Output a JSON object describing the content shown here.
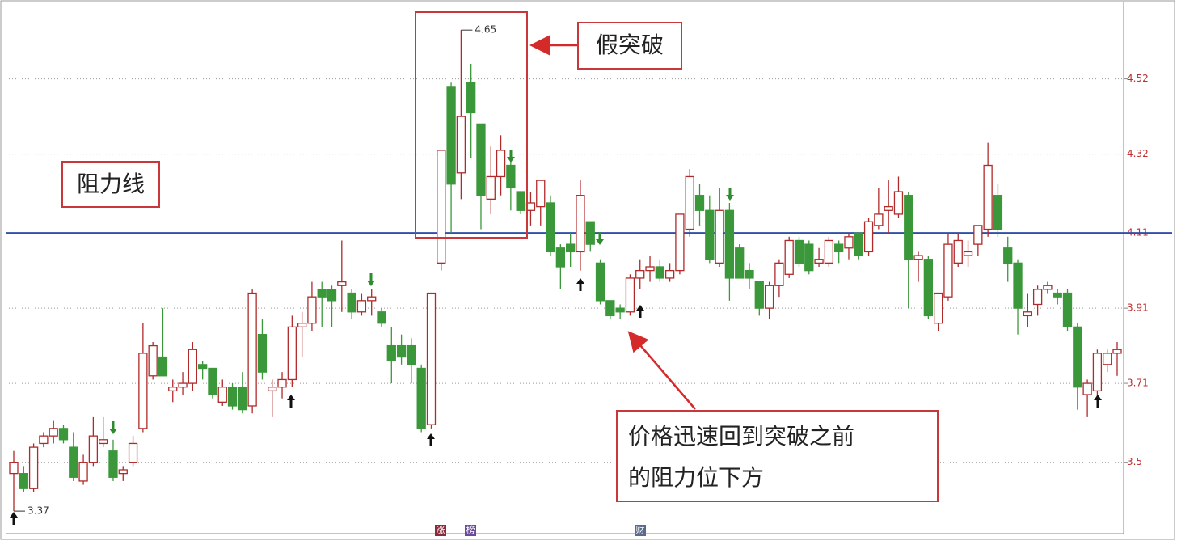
{
  "chart_data": {
    "type": "candlestick",
    "open": [
      3.47,
      3.47,
      3.43,
      3.55,
      3.57,
      3.59,
      3.54,
      3.45,
      3.5,
      3.55,
      3.53,
      3.47,
      3.5,
      3.59,
      3.73,
      3.78,
      3.69,
      3.7,
      3.71,
      3.76,
      3.75,
      3.66,
      3.7,
      3.7,
      3.65,
      3.84,
      3.69,
      3.7,
      3.72,
      3.86,
      3.87,
      3.96,
      3.96,
      3.97,
      3.95,
      3.9,
      3.93,
      3.9,
      3.81,
      3.81,
      3.81,
      3.75,
      3.6,
      4.03,
      4.5,
      4.27,
      4.51,
      4.4,
      4.2,
      4.26,
      4.29,
      4.22,
      4.17,
      4.18,
      4.19,
      4.07,
      4.08,
      4.06,
      4.14,
      4.03,
      3.93,
      3.91,
      3.9,
      3.99,
      4.01,
      4.02,
      3.99,
      4.01,
      4.12,
      4.21,
      4.17,
      4.03,
      4.17,
      4.07,
      4.01,
      3.98,
      3.91,
      3.97,
      4.0,
      4.09,
      4.08,
      4.03,
      4.03,
      4.08,
      4.07,
      4.11,
      4.06,
      4.13,
      4.17,
      4.16,
      4.21,
      4.04,
      4.04,
      3.87,
      3.94,
      4.03,
      4.05,
      4.08,
      4.12,
      4.21,
      4.07,
      4.03,
      3.89,
      3.92,
      3.96,
      3.95,
      3.95,
      3.86,
      3.68,
      3.69,
      3.76,
      3.79
    ],
    "high": [
      3.53,
      3.49,
      3.55,
      3.58,
      3.61,
      3.6,
      3.58,
      3.52,
      3.62,
      3.62,
      3.56,
      3.49,
      3.57,
      3.87,
      3.82,
      3.91,
      3.72,
      3.74,
      3.82,
      3.77,
      3.75,
      3.72,
      3.71,
      3.74,
      3.96,
      3.88,
      3.72,
      3.74,
      3.89,
      3.9,
      3.98,
      3.98,
      3.97,
      4.09,
      3.96,
      3.95,
      3.96,
      3.91,
      3.86,
      3.84,
      3.83,
      3.76,
      3.95,
      4.33,
      4.51,
      4.65,
      4.56,
      4.4,
      4.34,
      4.37,
      4.31,
      4.22,
      4.22,
      4.25,
      4.21,
      4.08,
      4.11,
      4.25,
      4.14,
      4.04,
      3.93,
      3.92,
      4.0,
      4.04,
      4.05,
      4.04,
      4.03,
      4.16,
      4.28,
      4.24,
      4.21,
      4.23,
      4.19,
      4.08,
      4.03,
      3.98,
      3.98,
      4.04,
      4.1,
      4.1,
      4.09,
      4.07,
      4.1,
      4.09,
      4.11,
      4.11,
      4.15,
      4.23,
      4.25,
      4.26,
      4.22,
      4.06,
      4.05,
      3.95,
      4.11,
      4.11,
      4.09,
      4.13,
      4.35,
      4.24,
      4.1,
      4.04,
      3.95,
      3.97,
      3.98,
      3.96,
      3.96,
      3.87,
      3.72,
      3.8,
      3.8,
      3.82
    ],
    "low": [
      3.37,
      3.42,
      3.42,
      3.54,
      3.55,
      3.55,
      3.45,
      3.44,
      3.49,
      3.54,
      3.45,
      3.45,
      3.49,
      3.58,
      3.72,
      3.73,
      3.66,
      3.68,
      3.69,
      3.72,
      3.67,
      3.65,
      3.64,
      3.63,
      3.63,
      3.72,
      3.62,
      3.67,
      3.7,
      3.78,
      3.85,
      3.86,
      3.86,
      3.9,
      3.88,
      3.89,
      3.89,
      3.86,
      3.71,
      3.76,
      3.71,
      3.58,
      3.59,
      4.01,
      4.11,
      4.2,
      4.31,
      4.12,
      4.16,
      4.21,
      4.17,
      4.16,
      4.13,
      4.13,
      4.05,
      3.96,
      4.02,
      4.01,
      4.06,
      3.92,
      3.88,
      3.88,
      3.89,
      3.96,
      3.98,
      3.98,
      3.98,
      4.0,
      4.1,
      4.13,
      4.03,
      4.02,
      3.93,
      3.99,
      3.96,
      3.89,
      3.88,
      3.94,
      3.99,
      4.02,
      4.0,
      4.02,
      4.02,
      4.03,
      4.04,
      4.04,
      4.05,
      4.12,
      4.11,
      4.15,
      3.91,
      3.98,
      3.88,
      3.85,
      3.93,
      4.02,
      4.02,
      4.05,
      4.1,
      4.1,
      3.98,
      3.84,
      3.86,
      3.89,
      3.95,
      3.92,
      3.85,
      3.64,
      3.62,
      3.67,
      3.74,
      3.73
    ],
    "close": [
      3.5,
      3.43,
      3.54,
      3.57,
      3.59,
      3.56,
      3.46,
      3.5,
      3.57,
      3.56,
      3.46,
      3.48,
      3.55,
      3.79,
      3.81,
      3.73,
      3.7,
      3.71,
      3.8,
      3.75,
      3.68,
      3.7,
      3.65,
      3.64,
      3.95,
      3.74,
      3.7,
      3.72,
      3.86,
      3.87,
      3.94,
      3.94,
      3.93,
      3.98,
      3.9,
      3.93,
      3.94,
      3.87,
      3.77,
      3.78,
      3.76,
      3.59,
      3.95,
      4.33,
      4.24,
      4.42,
      4.43,
      4.21,
      4.26,
      4.33,
      4.23,
      4.17,
      4.19,
      4.25,
      4.06,
      4.02,
      4.06,
      4.21,
      4.08,
      3.93,
      3.89,
      3.9,
      3.99,
      4.01,
      4.02,
      3.99,
      4.01,
      4.16,
      4.26,
      4.17,
      4.04,
      4.17,
      3.99,
      3.99,
      3.99,
      3.91,
      3.97,
      4.03,
      4.09,
      4.03,
      4.01,
      4.04,
      4.09,
      4.06,
      4.1,
      4.05,
      4.14,
      4.16,
      4.18,
      4.22,
      4.04,
      4.05,
      3.89,
      3.95,
      4.08,
      4.09,
      4.06,
      4.13,
      4.29,
      4.12,
      4.03,
      3.91,
      3.9,
      3.96,
      3.97,
      3.94,
      3.86,
      3.7,
      3.71,
      3.79,
      3.79,
      3.8
    ],
    "up_color": "#b02a2a",
    "down_color": "#3a983a",
    "ylim": [
      3.31,
      4.73
    ],
    "yticks": [
      3.5,
      3.71,
      3.91,
      4.11,
      4.32,
      4.52
    ],
    "grid": true,
    "resistance": 4.11,
    "resistance_color": "#2f4fa8",
    "annotations": {
      "resistance_label": "阻力线",
      "fake_breakout": "假突破",
      "note": [
        "价格迅速回到突破之前",
        "的阻力位下方"
      ]
    },
    "badges": [
      "涨",
      "榜",
      "财"
    ]
  }
}
